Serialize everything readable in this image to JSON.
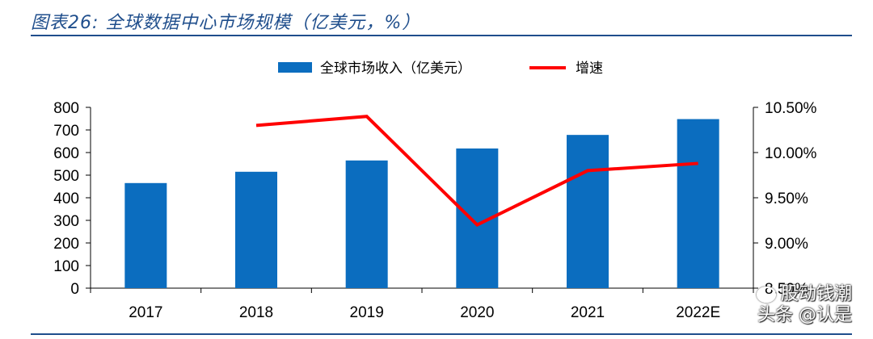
{
  "figure": {
    "title": "图表26:  全球数据中心市场规模（亿美元，%）"
  },
  "colors": {
    "bar": "#0b6dbf",
    "line": "#ff0000",
    "title": "#1f4e8c",
    "axis": "#000000"
  },
  "watermark": {
    "line1": "股动钱潮",
    "line2": "头条 @认是"
  },
  "chart_data": {
    "type": "bar",
    "title": "全球数据中心市场规模（亿美元，%）",
    "categories": [
      "2017",
      "2018",
      "2019",
      "2020",
      "2021",
      "2022E"
    ],
    "legend_position": "top-center",
    "series": [
      {
        "name": "全球市场收入（亿美元）",
        "type": "bar",
        "axis": "left",
        "values": [
          465,
          515,
          565,
          618,
          678,
          748
        ]
      },
      {
        "name": "增速",
        "type": "line",
        "axis": "right",
        "values": [
          null,
          10.3,
          10.4,
          9.2,
          9.8,
          9.88
        ]
      }
    ],
    "y_left": {
      "ylim": [
        0,
        800
      ],
      "ticks": [
        0,
        100,
        200,
        300,
        400,
        500,
        600,
        700,
        800
      ],
      "tick_labels": [
        "0",
        "100",
        "200",
        "300",
        "400",
        "500",
        "600",
        "700",
        "800"
      ]
    },
    "y_right": {
      "ylim": [
        8.5,
        10.5
      ],
      "ticks": [
        8.5,
        9.0,
        9.5,
        10.0,
        10.5
      ],
      "tick_labels": [
        "8.50%",
        "9.00%",
        "9.50%",
        "10.00%",
        "10.50%"
      ]
    },
    "grid": false
  }
}
